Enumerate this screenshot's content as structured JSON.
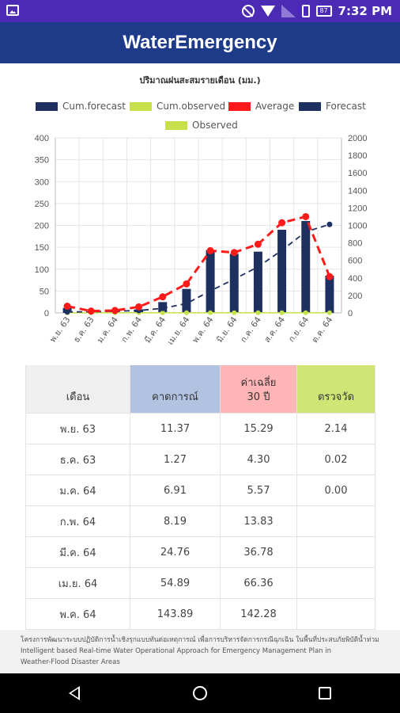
{
  "status_bar": {
    "time": "7:32 PM",
    "battery": "87"
  },
  "app_bar": {
    "title": "WaterEmergency"
  },
  "chart_data": {
    "type": "bar",
    "title": "ปริมาณฝนสะสมรายเดือน (มม.)",
    "categories": [
      "พ.ย. 63",
      "ธ.ค. 63",
      "ม.ค. 64",
      "ก.พ. 64",
      "มี.ค. 64",
      "เม.ย. 64",
      "พ.ค. 64",
      "มิ.ย. 64",
      "ก.ค. 64",
      "ส.ค. 64",
      "ก.ย. 64",
      "ต.ค. 64"
    ],
    "y_left": {
      "ticks": [
        "0",
        "50",
        "100",
        "150",
        "200",
        "250",
        "300",
        "350",
        "400"
      ],
      "range": [
        0,
        400
      ]
    },
    "y_right": {
      "ticks": [
        "0",
        "200",
        "400",
        "600",
        "800",
        "1000",
        "1200",
        "1400",
        "1600",
        "1800",
        "2000"
      ],
      "range": [
        0,
        2000
      ]
    },
    "legend_position": "top",
    "grid": true,
    "series": [
      {
        "name": "Cum.forecast",
        "kind": "dashed-line",
        "axis": "right",
        "color": "#1e3060",
        "values": [
          11.37,
          12.64,
          19.55,
          27.74,
          52.5,
          107.39,
          251.28,
          386.28,
          526.28,
          716.28,
          926.28,
          1011.28
        ]
      },
      {
        "name": "Cum.observed",
        "kind": "line",
        "axis": "right",
        "color": "#c6e04c",
        "values": [
          2.14,
          2.16,
          2.16,
          2.16,
          2.16,
          2.16,
          2.16,
          2.16,
          2.16,
          2.16,
          2.16,
          2.16
        ]
      },
      {
        "name": "Average",
        "kind": "dashed-line",
        "axis": "left",
        "color": "#ff1a1a",
        "values": [
          15.29,
          4.3,
          5.57,
          13.83,
          36.78,
          66.36,
          142.28,
          138,
          157,
          206,
          220,
          83
        ]
      },
      {
        "name": "Forecast",
        "kind": "bar",
        "axis": "left",
        "color": "#1e3060",
        "values": [
          11.37,
          1.27,
          6.91,
          8.19,
          24.76,
          54.89,
          143.89,
          135,
          140,
          190,
          210,
          85
        ]
      },
      {
        "name": "Observed",
        "kind": "bar",
        "axis": "left",
        "color": "#c6e04c",
        "values": [
          2.14,
          0.02,
          0.0,
          0,
          0,
          0,
          0,
          0,
          0,
          0,
          0,
          0
        ]
      }
    ]
  },
  "legend_colors": {
    "cum_forecast": "#1e3060",
    "cum_observed": "#c6e04c",
    "average": "#ff1a1a",
    "forecast": "#1e3060",
    "observed": "#c6e04c"
  },
  "table": {
    "headers": {
      "month": "เดือน",
      "forecast": "คาดการณ์",
      "average_line1": "ค่าเฉลี่ย",
      "average_line2": "30 ปี",
      "observed": "ตรวจวัด"
    },
    "header_colors": {
      "month": "#efefef",
      "forecast": "#b2c2e1",
      "average": "#ffb5b5",
      "observed": "#cfe676"
    },
    "rows": [
      {
        "month": "พ.ย. 63",
        "forecast": "11.37",
        "average": "15.29",
        "observed": "2.14"
      },
      {
        "month": "ธ.ค. 63",
        "forecast": "1.27",
        "average": "4.30",
        "observed": "0.02"
      },
      {
        "month": "ม.ค. 64",
        "forecast": "6.91",
        "average": "5.57",
        "observed": "0.00"
      },
      {
        "month": "ก.พ. 64",
        "forecast": "8.19",
        "average": "13.83",
        "observed": ""
      },
      {
        "month": "มี.ค. 64",
        "forecast": "24.76",
        "average": "36.78",
        "observed": ""
      },
      {
        "month": "เม.ย. 64",
        "forecast": "54.89",
        "average": "66.36",
        "observed": ""
      },
      {
        "month": "พ.ค. 64",
        "forecast": "143.89",
        "average": "142.28",
        "observed": ""
      }
    ]
  },
  "footer": {
    "line1": "โครงการพัฒนาระบบปฏิบัติการน้ำเชิงรุกแบบทันต่อเหตุการณ์ เพื่อการบริหารจัดการกรณีฉุกเฉิน ในพื้นที่ประสบภัยพิบัติน้ำท่วม Intelligent based Real-time Water Operational Approach for Emergency Management Plan in",
    "line2": "Weather-Flood Disaster Areas"
  }
}
